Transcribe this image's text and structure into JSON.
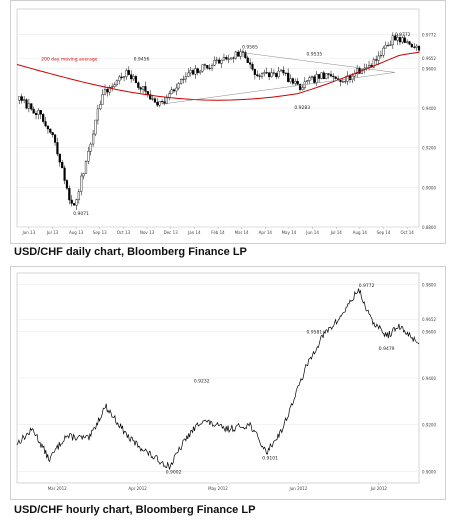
{
  "captions": {
    "daily": "USD/CHF daily chart, Bloomberg Finance LP",
    "hourly": "USD/CHF hourly chart, Bloomberg Finance LP"
  },
  "chart_data": [
    {
      "type": "candlestick",
      "name": "daily",
      "xlabel": "",
      "ylabel": "",
      "ylim": [
        0.88,
        0.99
      ],
      "x_ticks": [
        "Jun 13",
        "Jul 13",
        "Aug 13",
        "Sep 13",
        "Oct 13",
        "Nov 13",
        "Dec 13",
        "Jan 14",
        "Feb 14",
        "Mar 14",
        "Apr 14",
        "May 14",
        "Jun 14",
        "Jul 14",
        "Aug 14",
        "Sep 14",
        "Oct 14"
      ],
      "y_ticks": [
        0.9772,
        0.9652,
        0.96,
        0.94,
        0.92,
        0.9,
        0.88
      ],
      "annotations": [
        {
          "text": "200 day moving average",
          "x": 0.06,
          "y": 0.964,
          "color": "#cc0000"
        },
        {
          "text": "0.9071",
          "x": 0.14,
          "y": 0.886
        },
        {
          "text": "0.9456",
          "x": 0.29,
          "y": 0.964
        },
        {
          "text": "0.9565",
          "x": 0.56,
          "y": 0.97
        },
        {
          "text": "0.9535",
          "x": 0.72,
          "y": 0.9665
        },
        {
          "text": "0.9283",
          "x": 0.69,
          "y": 0.9395
        },
        {
          "text": "0.9772",
          "x": 0.94,
          "y": 0.9765
        }
      ],
      "colors": {
        "price": "#000000",
        "moving_average": "#cc0000",
        "trendline": "#888888"
      }
    },
    {
      "type": "line",
      "name": "hourly",
      "xlabel": "",
      "ylabel": "",
      "ylim": [
        0.895,
        0.985
      ],
      "y_ticks": [
        0.98,
        0.9652,
        0.96,
        0.94,
        0.92,
        0.9
      ],
      "x_ticks": [
        "Mar 2012",
        "Apr 2012",
        "May 2012",
        "Jun 2012",
        "Jul 2012"
      ],
      "annotations": [
        {
          "text": "0.9232",
          "x": 0.44,
          "y": 0.938
        },
        {
          "text": "0.9002",
          "x": 0.37,
          "y": 0.899
        },
        {
          "text": "0.9581",
          "x": 0.72,
          "y": 0.959
        },
        {
          "text": "0.9772",
          "x": 0.85,
          "y": 0.979
        },
        {
          "text": "0.9479",
          "x": 0.9,
          "y": 0.952
        },
        {
          "text": "0.9101",
          "x": 0.61,
          "y": 0.905
        }
      ],
      "colors": {
        "price": "#000000"
      }
    }
  ]
}
